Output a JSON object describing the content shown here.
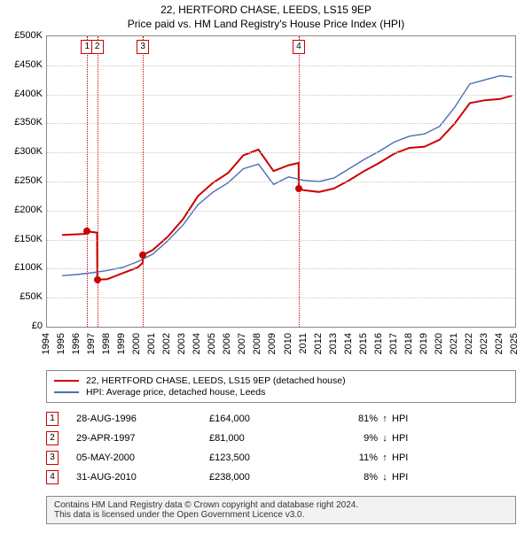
{
  "titles": {
    "line1": "22, HERTFORD CHASE, LEEDS, LS15 9EP",
    "line2": "Price paid vs. HM Land Registry's House Price Index (HPI)"
  },
  "chart": {
    "type": "line",
    "xlim": [
      1994,
      2025
    ],
    "ylim": [
      0,
      500000
    ],
    "ytick_step": 50000,
    "yticks": [
      {
        "v": 0,
        "label": "£0"
      },
      {
        "v": 50000,
        "label": "£50K"
      },
      {
        "v": 100000,
        "label": "£100K"
      },
      {
        "v": 150000,
        "label": "£150K"
      },
      {
        "v": 200000,
        "label": "£200K"
      },
      {
        "v": 250000,
        "label": "£250K"
      },
      {
        "v": 300000,
        "label": "£300K"
      },
      {
        "v": 350000,
        "label": "£350K"
      },
      {
        "v": 400000,
        "label": "£400K"
      },
      {
        "v": 450000,
        "label": "£450K"
      },
      {
        "v": 500000,
        "label": "£500K"
      }
    ],
    "xticks": [
      1994,
      1995,
      1996,
      1997,
      1998,
      1999,
      2000,
      2001,
      2002,
      2003,
      2004,
      2005,
      2006,
      2007,
      2008,
      2009,
      2010,
      2011,
      2012,
      2013,
      2014,
      2015,
      2016,
      2017,
      2018,
      2019,
      2020,
      2021,
      2022,
      2023,
      2024,
      2025
    ],
    "grid_color": "#c8c8c8",
    "border_color": "#888888",
    "background_color": "#ffffff",
    "event_line_color": "#cc0000",
    "series": [
      {
        "name": "property",
        "label": "22, HERTFORD CHASE, LEEDS, LS15 9EP (detached house)",
        "color": "#cc0000",
        "width": 2,
        "data": [
          [
            1995.0,
            158000
          ],
          [
            1996.65,
            160000
          ],
          [
            1996.66,
            164000
          ],
          [
            1997.32,
            162000
          ],
          [
            1997.33,
            81000
          ],
          [
            1998.0,
            82000
          ],
          [
            1999.0,
            92000
          ],
          [
            2000.0,
            102000
          ],
          [
            2000.34,
            110000
          ],
          [
            2000.35,
            123500
          ],
          [
            2001.0,
            132000
          ],
          [
            2002.0,
            155000
          ],
          [
            2003.0,
            185000
          ],
          [
            2004.0,
            225000
          ],
          [
            2005.0,
            248000
          ],
          [
            2006.0,
            265000
          ],
          [
            2007.0,
            295000
          ],
          [
            2008.0,
            305000
          ],
          [
            2009.0,
            268000
          ],
          [
            2010.0,
            278000
          ],
          [
            2010.66,
            282000
          ],
          [
            2010.67,
            238000
          ],
          [
            2011.0,
            235000
          ],
          [
            2012.0,
            232000
          ],
          [
            2013.0,
            238000
          ],
          [
            2014.0,
            252000
          ],
          [
            2015.0,
            268000
          ],
          [
            2016.0,
            282000
          ],
          [
            2017.0,
            298000
          ],
          [
            2018.0,
            308000
          ],
          [
            2019.0,
            310000
          ],
          [
            2020.0,
            322000
          ],
          [
            2021.0,
            350000
          ],
          [
            2022.0,
            385000
          ],
          [
            2023.0,
            390000
          ],
          [
            2024.0,
            392000
          ],
          [
            2024.8,
            398000
          ]
        ]
      },
      {
        "name": "hpi",
        "label": "HPI: Average price, detached house, Leeds",
        "color": "#4a6fb5",
        "width": 1.4,
        "data": [
          [
            1995.0,
            88000
          ],
          [
            1996.0,
            90000
          ],
          [
            1997.0,
            93000
          ],
          [
            1998.0,
            97000
          ],
          [
            1999.0,
            102000
          ],
          [
            2000.0,
            112000
          ],
          [
            2001.0,
            125000
          ],
          [
            2002.0,
            148000
          ],
          [
            2003.0,
            175000
          ],
          [
            2004.0,
            210000
          ],
          [
            2005.0,
            232000
          ],
          [
            2006.0,
            248000
          ],
          [
            2007.0,
            272000
          ],
          [
            2008.0,
            280000
          ],
          [
            2009.0,
            245000
          ],
          [
            2010.0,
            258000
          ],
          [
            2011.0,
            252000
          ],
          [
            2012.0,
            250000
          ],
          [
            2013.0,
            256000
          ],
          [
            2014.0,
            272000
          ],
          [
            2015.0,
            288000
          ],
          [
            2016.0,
            302000
          ],
          [
            2017.0,
            318000
          ],
          [
            2018.0,
            328000
          ],
          [
            2019.0,
            332000
          ],
          [
            2020.0,
            345000
          ],
          [
            2021.0,
            378000
          ],
          [
            2022.0,
            418000
          ],
          [
            2023.0,
            425000
          ],
          [
            2024.0,
            432000
          ],
          [
            2024.8,
            430000
          ]
        ]
      }
    ],
    "events": [
      {
        "n": "1",
        "x": 1996.66,
        "date": "28-AUG-1996",
        "price": "£164,000",
        "pct": "81%",
        "dir": "↑",
        "lbl": "HPI",
        "marker_y": 164000
      },
      {
        "n": "2",
        "x": 1997.33,
        "date": "29-APR-1997",
        "price": "£81,000",
        "pct": "9%",
        "dir": "↓",
        "lbl": "HPI",
        "marker_y": 81000
      },
      {
        "n": "3",
        "x": 2000.35,
        "date": "05-MAY-2000",
        "price": "£123,500",
        "pct": "11%",
        "dir": "↑",
        "lbl": "HPI",
        "marker_y": 123500
      },
      {
        "n": "4",
        "x": 2010.67,
        "date": "31-AUG-2010",
        "price": "£238,000",
        "pct": "8%",
        "dir": "↓",
        "lbl": "HPI",
        "marker_y": 238000
      }
    ],
    "marker_color": "#cc0000",
    "label_fontsize": 11
  },
  "footer": {
    "line1": "Contains HM Land Registry data © Crown copyright and database right 2024.",
    "line2": "This data is licensed under the Open Government Licence v3.0."
  }
}
